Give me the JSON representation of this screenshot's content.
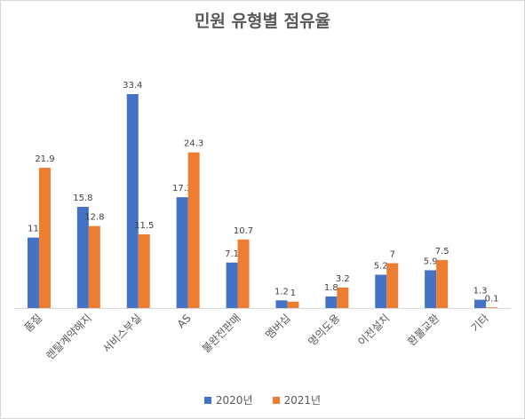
{
  "chart_data": {
    "type": "bar",
    "title": "민원 유형별 점유율",
    "xlabel": "",
    "ylabel": "",
    "ylim": [
      0,
      36
    ],
    "grid": false,
    "legend_position": "bottom",
    "categories": [
      "품질",
      "렌탈계약해지",
      "서비스부실",
      "AS",
      "불완전판매",
      "멤버십",
      "명의도용",
      "이전설치",
      "환불교환",
      "기타"
    ],
    "series": [
      {
        "name": "2020년",
        "color": "#4472c4",
        "values": [
          11,
          15.8,
          33.4,
          17.3,
          7.1,
          1.2,
          1.8,
          5.2,
          5.9,
          1.3
        ]
      },
      {
        "name": "2021년",
        "color": "#ed7d31",
        "values": [
          21.9,
          12.8,
          11.5,
          24.3,
          10.7,
          1,
          3.2,
          7,
          7.5,
          0.1
        ]
      }
    ],
    "axis_color": "#d9d9d9",
    "label_color": "#404040"
  }
}
